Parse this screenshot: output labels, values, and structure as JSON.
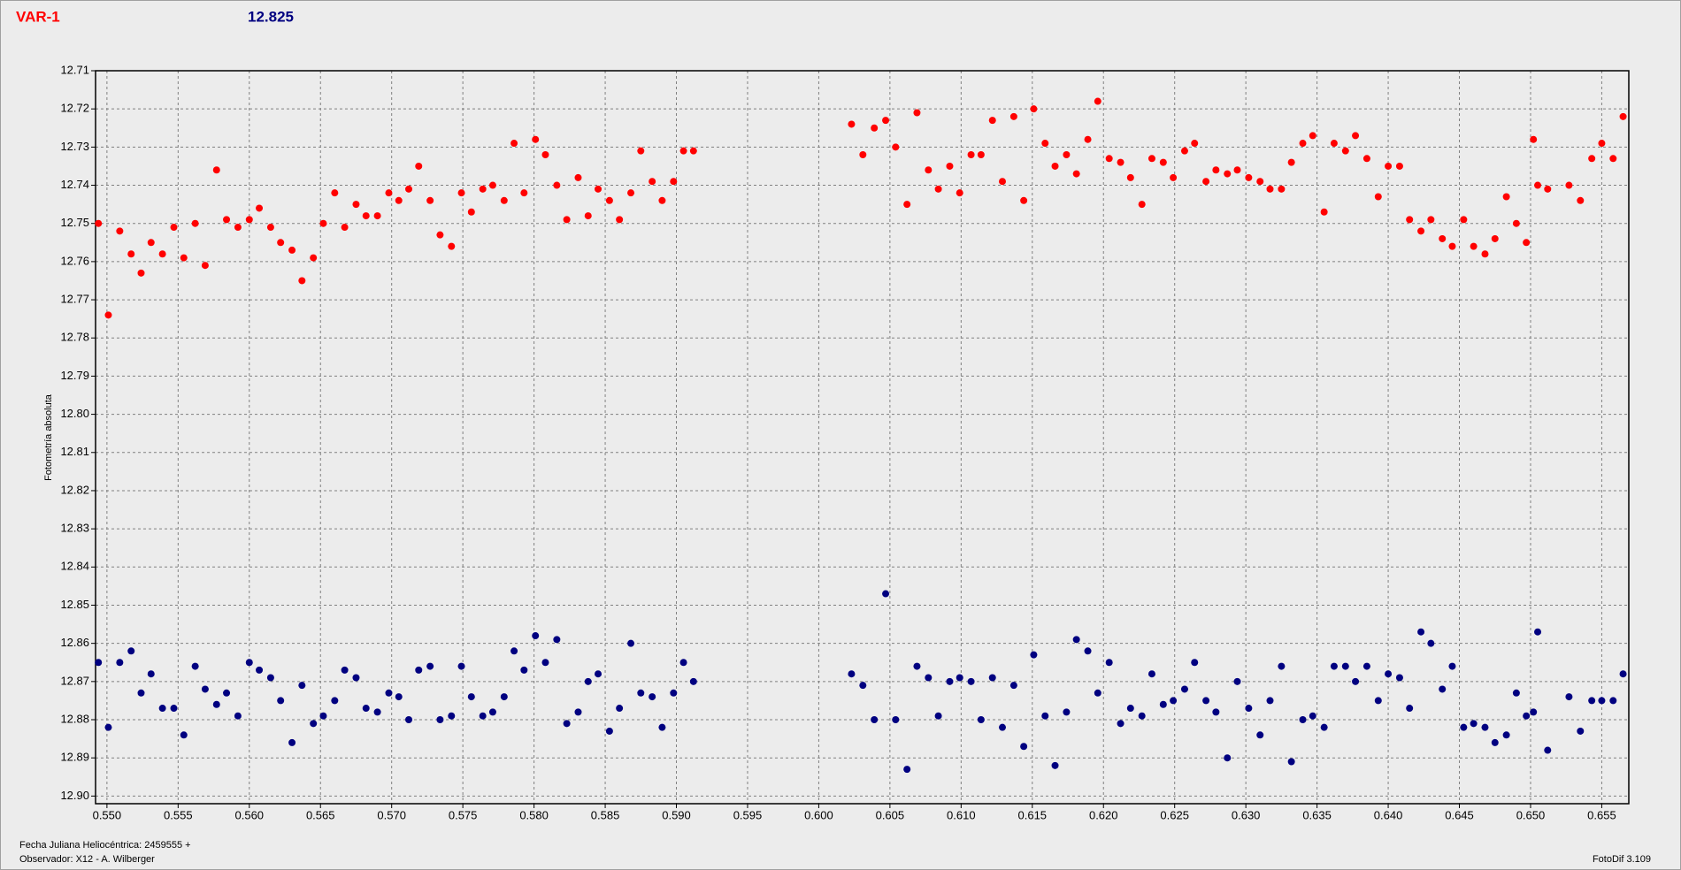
{
  "chart_data": {
    "type": "scatter",
    "title": "VAR-1",
    "subtitle": "12.825",
    "y_label": "Fotometría absoluta",
    "x_label": "Fecha Juliana Heliocéntrica: 2459555 +",
    "annotations": [
      "Observador: X12 - A. Wilberger",
      "FotoDif 3.109"
    ],
    "xlim": [
      0.5492,
      0.6569
    ],
    "ylim": [
      12.71,
      12.902
    ],
    "y_inverted": true,
    "grid": true,
    "xticks": [
      {
        "value": 0.55,
        "label": "0.550"
      },
      0.555,
      {
        "value": 0.56,
        "label": "0.560"
      },
      0.565,
      {
        "value": 0.57,
        "label": "0.570"
      },
      0.575,
      {
        "value": 0.58,
        "label": "0.580"
      },
      0.585,
      {
        "value": 0.59,
        "label": "0.590"
      },
      0.595,
      {
        "value": 0.6,
        "label": "0.600"
      },
      0.605,
      {
        "value": 0.61,
        "label": "0.610"
      },
      0.615,
      {
        "value": 0.62,
        "label": "0.620"
      },
      0.625,
      {
        "value": 0.63,
        "label": "0.630"
      },
      0.635,
      {
        "value": 0.64,
        "label": "0.640"
      },
      0.645,
      {
        "value": 0.65,
        "label": "0.650"
      },
      0.655
    ],
    "yticks": [
      12.71,
      12.72,
      12.73,
      12.74,
      12.75,
      12.76,
      12.77,
      12.78,
      12.79,
      {
        "value": 12.8,
        "label": "12.80"
      },
      12.81,
      12.82,
      12.83,
      12.84,
      12.85,
      12.86,
      12.87,
      12.88,
      12.89,
      {
        "value": 12.9,
        "label": "12.90"
      }
    ],
    "x": [
      0.5494,
      0.5501,
      0.5509,
      0.5517,
      0.5524,
      0.5531,
      0.5539,
      0.5547,
      0.5554,
      0.5562,
      0.5569,
      0.5577,
      0.5584,
      0.5592,
      0.56,
      0.5607,
      0.5615,
      0.5622,
      0.563,
      0.5637,
      0.5645,
      0.5652,
      0.566,
      0.5667,
      0.5675,
      0.5682,
      0.569,
      0.5698,
      0.5705,
      0.5712,
      0.5719,
      0.5727,
      0.5734,
      0.5742,
      0.5749,
      0.5756,
      0.5764,
      0.5771,
      0.5779,
      0.5786,
      0.5793,
      0.5801,
      0.5808,
      0.5816,
      0.5823,
      0.5831,
      0.5838,
      0.5845,
      0.5853,
      0.586,
      0.5868,
      0.5875,
      0.5883,
      0.589,
      0.5898,
      0.5905,
      0.5912,
      0.6023,
      0.6031,
      0.6039,
      0.6047,
      0.6054,
      0.6062,
      0.6069,
      0.6077,
      0.6084,
      0.6092,
      0.6099,
      0.6107,
      0.6114,
      0.6122,
      0.6129,
      0.6137,
      0.6144,
      0.6151,
      0.6159,
      0.6166,
      0.6174,
      0.6181,
      0.6189,
      0.6196,
      0.6204,
      0.6212,
      0.6219,
      0.6227,
      0.6234,
      0.6242,
      0.6249,
      0.6257,
      0.6264,
      0.6272,
      0.6279,
      0.6287,
      0.6294,
      0.6302,
      0.631,
      0.6317,
      0.6325,
      0.6332,
      0.634,
      0.6347,
      0.6355,
      0.6362,
      0.637,
      0.6377,
      0.6385,
      0.6393,
      0.64,
      0.6408,
      0.6415,
      0.6423,
      0.643,
      0.6438,
      0.6445,
      0.6453,
      0.646,
      0.6468,
      0.6475,
      0.6483,
      0.649,
      0.6497,
      0.6502,
      0.6505,
      0.6512,
      0.6527,
      0.6535,
      0.6543,
      0.655,
      0.6558,
      0.6565
    ],
    "series": [
      {
        "color": "#ff0000",
        "values": [
          12.75,
          12.774,
          12.752,
          12.758,
          12.763,
          12.755,
          12.758,
          12.751,
          12.759,
          12.75,
          12.761,
          12.736,
          12.749,
          12.751,
          12.749,
          12.746,
          12.751,
          12.755,
          12.757,
          12.765,
          12.759,
          12.75,
          12.742,
          12.751,
          12.745,
          12.748,
          12.748,
          12.742,
          12.744,
          12.741,
          12.735,
          12.744,
          12.753,
          12.756,
          12.742,
          12.747,
          12.741,
          12.74,
          12.744,
          12.729,
          12.742,
          12.728,
          12.732,
          12.74,
          12.749,
          12.738,
          12.748,
          12.741,
          12.744,
          12.749,
          12.742,
          12.731,
          12.739,
          12.744,
          12.739,
          12.731,
          12.731,
          12.724,
          12.732,
          12.725,
          12.723,
          12.73,
          12.745,
          12.721,
          12.736,
          12.741,
          12.735,
          12.742,
          12.732,
          12.732,
          12.723,
          12.739,
          12.722,
          12.744,
          12.72,
          12.729,
          12.735,
          12.732,
          12.737,
          12.728,
          12.718,
          12.733,
          12.734,
          12.738,
          12.745,
          12.733,
          12.734,
          12.738,
          12.731,
          12.729,
          12.739,
          12.736,
          12.737,
          12.736,
          12.738,
          12.739,
          12.741,
          12.741,
          12.734,
          12.729,
          12.727,
          12.747,
          12.729,
          12.731,
          12.727,
          12.733,
          12.743,
          12.735,
          12.735,
          12.749,
          12.752,
          12.749,
          12.754,
          12.756,
          12.749,
          12.756,
          12.758,
          12.754,
          12.743,
          12.75,
          12.755,
          12.728,
          12.74,
          12.741,
          12.74,
          12.744,
          12.733,
          12.729,
          12.733,
          12.722
        ]
      },
      {
        "color": "#000080",
        "values": [
          12.865,
          12.882,
          12.865,
          12.862,
          12.873,
          12.868,
          12.877,
          12.877,
          12.884,
          12.866,
          12.872,
          12.876,
          12.873,
          12.879,
          12.865,
          12.867,
          12.869,
          12.875,
          12.886,
          12.871,
          12.881,
          12.879,
          12.875,
          12.867,
          12.869,
          12.877,
          12.878,
          12.873,
          12.874,
          12.88,
          12.867,
          12.866,
          12.88,
          12.879,
          12.866,
          12.874,
          12.879,
          12.878,
          12.874,
          12.862,
          12.867,
          12.858,
          12.865,
          12.859,
          12.881,
          12.878,
          12.87,
          12.868,
          12.883,
          12.877,
          12.86,
          12.873,
          12.874,
          12.882,
          12.873,
          12.865,
          12.87,
          12.868,
          12.871,
          12.88,
          12.847,
          12.88,
          12.893,
          12.866,
          12.869,
          12.879,
          12.87,
          12.869,
          12.87,
          12.88,
          12.869,
          12.882,
          12.871,
          12.887,
          12.863,
          12.879,
          12.892,
          12.878,
          12.859,
          12.862,
          12.873,
          12.865,
          12.881,
          12.877,
          12.879,
          12.868,
          12.876,
          12.875,
          12.872,
          12.865,
          12.875,
          12.878,
          12.89,
          12.87,
          12.877,
          12.884,
          12.875,
          12.866,
          12.891,
          12.88,
          12.879,
          12.882,
          12.866,
          12.866,
          12.87,
          12.866,
          12.875,
          12.868,
          12.869,
          12.877,
          12.857,
          12.86,
          12.872,
          12.866,
          12.882,
          12.881,
          12.882,
          12.886,
          12.884,
          12.873,
          12.879,
          12.878,
          12.857,
          12.888,
          12.874,
          12.883,
          12.875,
          12.875,
          12.875,
          12.868
        ]
      }
    ]
  }
}
